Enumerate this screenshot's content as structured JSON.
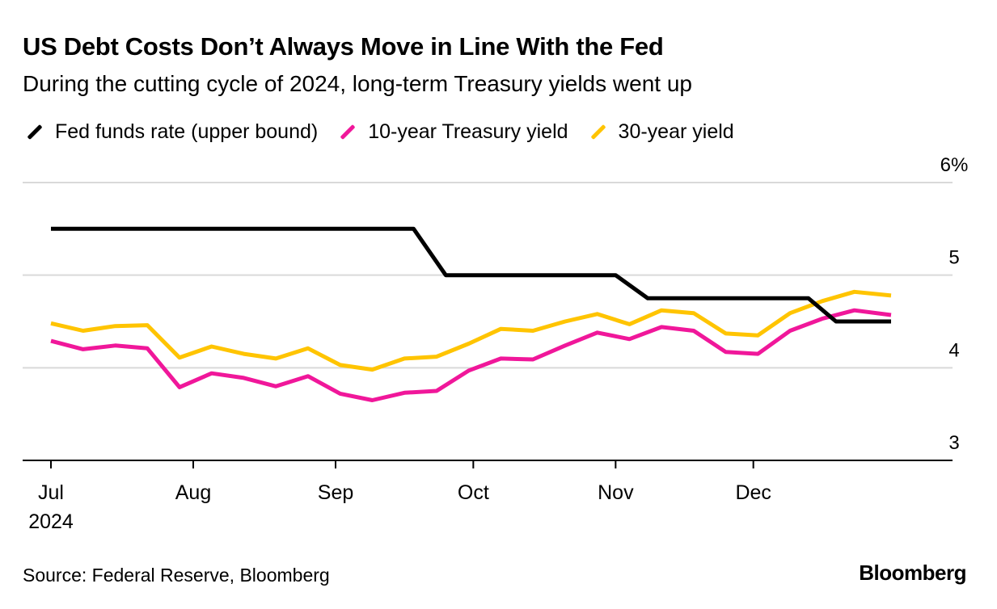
{
  "header": {
    "title": "US Debt Costs Don’t Always Move in Line With the Fed",
    "subtitle": "During the cutting cycle of 2024, long-term Treasury yields went up"
  },
  "footer": {
    "source": "Source: Federal Reserve, Bloomberg",
    "brand": "Bloomberg"
  },
  "chart_data": {
    "type": "line",
    "title": "US Debt Costs Don’t Always Move in Line With the Fed",
    "subtitle": "During the cutting cycle of 2024, long-term Treasury yields went up",
    "xlabel": "",
    "ylabel": "",
    "ylim": [
      3,
      6
    ],
    "y_ticks": [
      {
        "value": 6,
        "label": "6%"
      },
      {
        "value": 5,
        "label": "5"
      },
      {
        "value": 4,
        "label": "4"
      },
      {
        "value": 3,
        "label": "3"
      }
    ],
    "x_ticks": [
      {
        "date": "2024-07-01",
        "label": "Jul",
        "sublabel": "2024"
      },
      {
        "date": "2024-08-01",
        "label": "Aug",
        "sublabel": ""
      },
      {
        "date": "2024-09-01",
        "label": "Sep",
        "sublabel": ""
      },
      {
        "date": "2024-10-01",
        "label": "Oct",
        "sublabel": ""
      },
      {
        "date": "2024-11-01",
        "label": "Nov",
        "sublabel": ""
      },
      {
        "date": "2024-12-01",
        "label": "Dec",
        "sublabel": ""
      }
    ],
    "xlim": [
      "2024-07-01",
      "2025-01-03"
    ],
    "grid": true,
    "legend_position": "top-left",
    "series": [
      {
        "name": "Fed funds rate (upper bound)",
        "color": "#000000",
        "points": [
          [
            "2024-07-01",
            5.5
          ],
          [
            "2024-09-18",
            5.5
          ],
          [
            "2024-09-25",
            5.0
          ],
          [
            "2024-11-01",
            5.0
          ],
          [
            "2024-11-08",
            4.75
          ],
          [
            "2024-12-13",
            4.75
          ],
          [
            "2024-12-19",
            4.5
          ],
          [
            "2024-12-31",
            4.5
          ]
        ]
      },
      {
        "name": "10-year Treasury yield",
        "color": "#f0179a",
        "points": [
          [
            "2024-07-01",
            4.29
          ],
          [
            "2024-07-08",
            4.2
          ],
          [
            "2024-07-15",
            4.24
          ],
          [
            "2024-07-22",
            4.21
          ],
          [
            "2024-07-29",
            3.79
          ],
          [
            "2024-08-05",
            3.94
          ],
          [
            "2024-08-12",
            3.89
          ],
          [
            "2024-08-19",
            3.8
          ],
          [
            "2024-08-26",
            3.91
          ],
          [
            "2024-09-02",
            3.72
          ],
          [
            "2024-09-09",
            3.65
          ],
          [
            "2024-09-16",
            3.73
          ],
          [
            "2024-09-23",
            3.75
          ],
          [
            "2024-09-30",
            3.97
          ],
          [
            "2024-10-07",
            4.1
          ],
          [
            "2024-10-14",
            4.09
          ],
          [
            "2024-10-21",
            4.24
          ],
          [
            "2024-10-28",
            4.38
          ],
          [
            "2024-11-04",
            4.31
          ],
          [
            "2024-11-11",
            4.44
          ],
          [
            "2024-11-18",
            4.4
          ],
          [
            "2024-11-25",
            4.17
          ],
          [
            "2024-12-02",
            4.15
          ],
          [
            "2024-12-09",
            4.4
          ],
          [
            "2024-12-16",
            4.53
          ],
          [
            "2024-12-23",
            4.62
          ],
          [
            "2024-12-31",
            4.57
          ]
        ]
      },
      {
        "name": "30-year yield",
        "color": "#ffc400",
        "points": [
          [
            "2024-07-01",
            4.48
          ],
          [
            "2024-07-08",
            4.4
          ],
          [
            "2024-07-15",
            4.45
          ],
          [
            "2024-07-22",
            4.46
          ],
          [
            "2024-07-29",
            4.11
          ],
          [
            "2024-08-05",
            4.23
          ],
          [
            "2024-08-12",
            4.15
          ],
          [
            "2024-08-19",
            4.1
          ],
          [
            "2024-08-26",
            4.21
          ],
          [
            "2024-09-02",
            4.03
          ],
          [
            "2024-09-09",
            3.98
          ],
          [
            "2024-09-16",
            4.1
          ],
          [
            "2024-09-23",
            4.12
          ],
          [
            "2024-09-30",
            4.26
          ],
          [
            "2024-10-07",
            4.42
          ],
          [
            "2024-10-14",
            4.4
          ],
          [
            "2024-10-21",
            4.5
          ],
          [
            "2024-10-28",
            4.58
          ],
          [
            "2024-11-04",
            4.47
          ],
          [
            "2024-11-11",
            4.62
          ],
          [
            "2024-11-18",
            4.59
          ],
          [
            "2024-11-25",
            4.37
          ],
          [
            "2024-12-02",
            4.35
          ],
          [
            "2024-12-09",
            4.59
          ],
          [
            "2024-12-16",
            4.72
          ],
          [
            "2024-12-23",
            4.82
          ],
          [
            "2024-12-31",
            4.78
          ]
        ]
      }
    ]
  }
}
